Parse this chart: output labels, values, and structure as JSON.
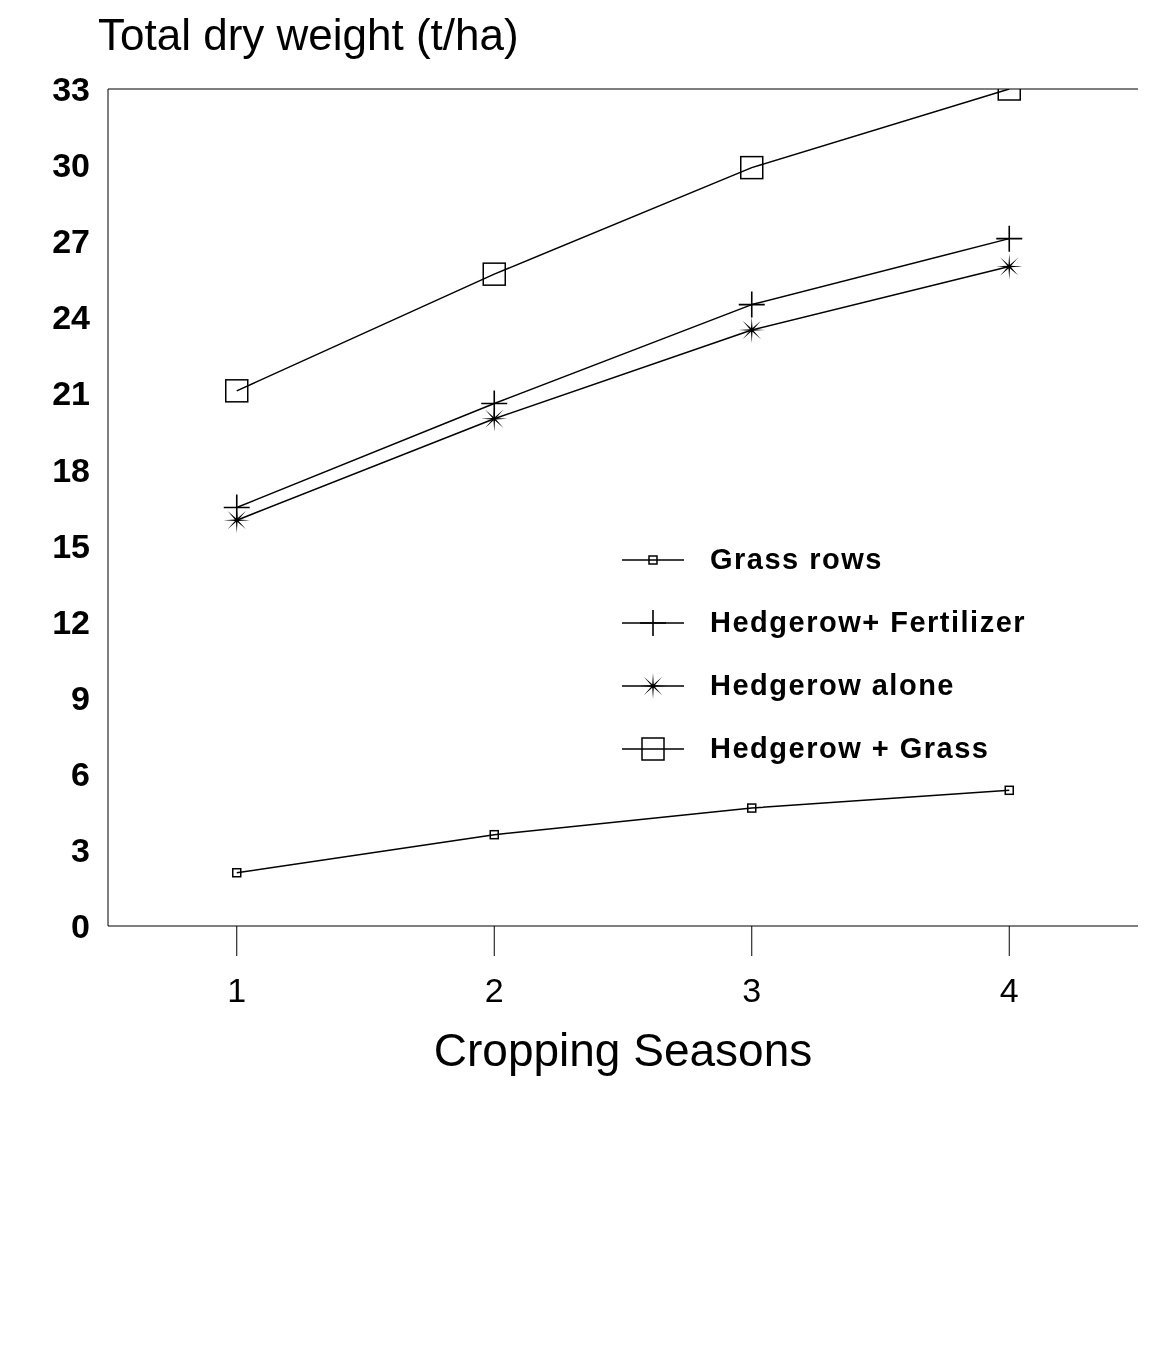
{
  "chart_data": {
    "type": "line",
    "ylabel": "Total dry weight (t/ha)",
    "xlabel": "Cropping Seasons",
    "x": [
      1,
      2,
      3,
      4
    ],
    "series": [
      {
        "name": "Grass rows",
        "color": "#000000",
        "marker": "square",
        "values": [
          2.1,
          3.6,
          4.65,
          5.35
        ]
      },
      {
        "name": "Hedgerow+ Fertilizer",
        "color": "#000000",
        "marker": "cross",
        "values": [
          16.5,
          20.6,
          24.5,
          27.1
        ]
      },
      {
        "name": "Hedgerow alone",
        "color": "#000000",
        "marker": "star",
        "values": [
          16.0,
          20.0,
          23.5,
          26.0
        ]
      },
      {
        "name": "Hedgerow + Grass",
        "color": "#000000",
        "marker": "square",
        "values": [
          21.1,
          25.7,
          29.9,
          33.0
        ]
      }
    ],
    "xlim": [
      0.5,
      4.5
    ],
    "xticks": [
      1,
      2,
      3,
      4
    ],
    "ylim": [
      0,
      33
    ],
    "yticks": [
      0,
      3,
      6,
      9,
      12,
      15,
      18,
      21,
      24,
      27,
      30,
      33
    ],
    "grid": false,
    "legend": "right",
    "line_style": "solid"
  }
}
